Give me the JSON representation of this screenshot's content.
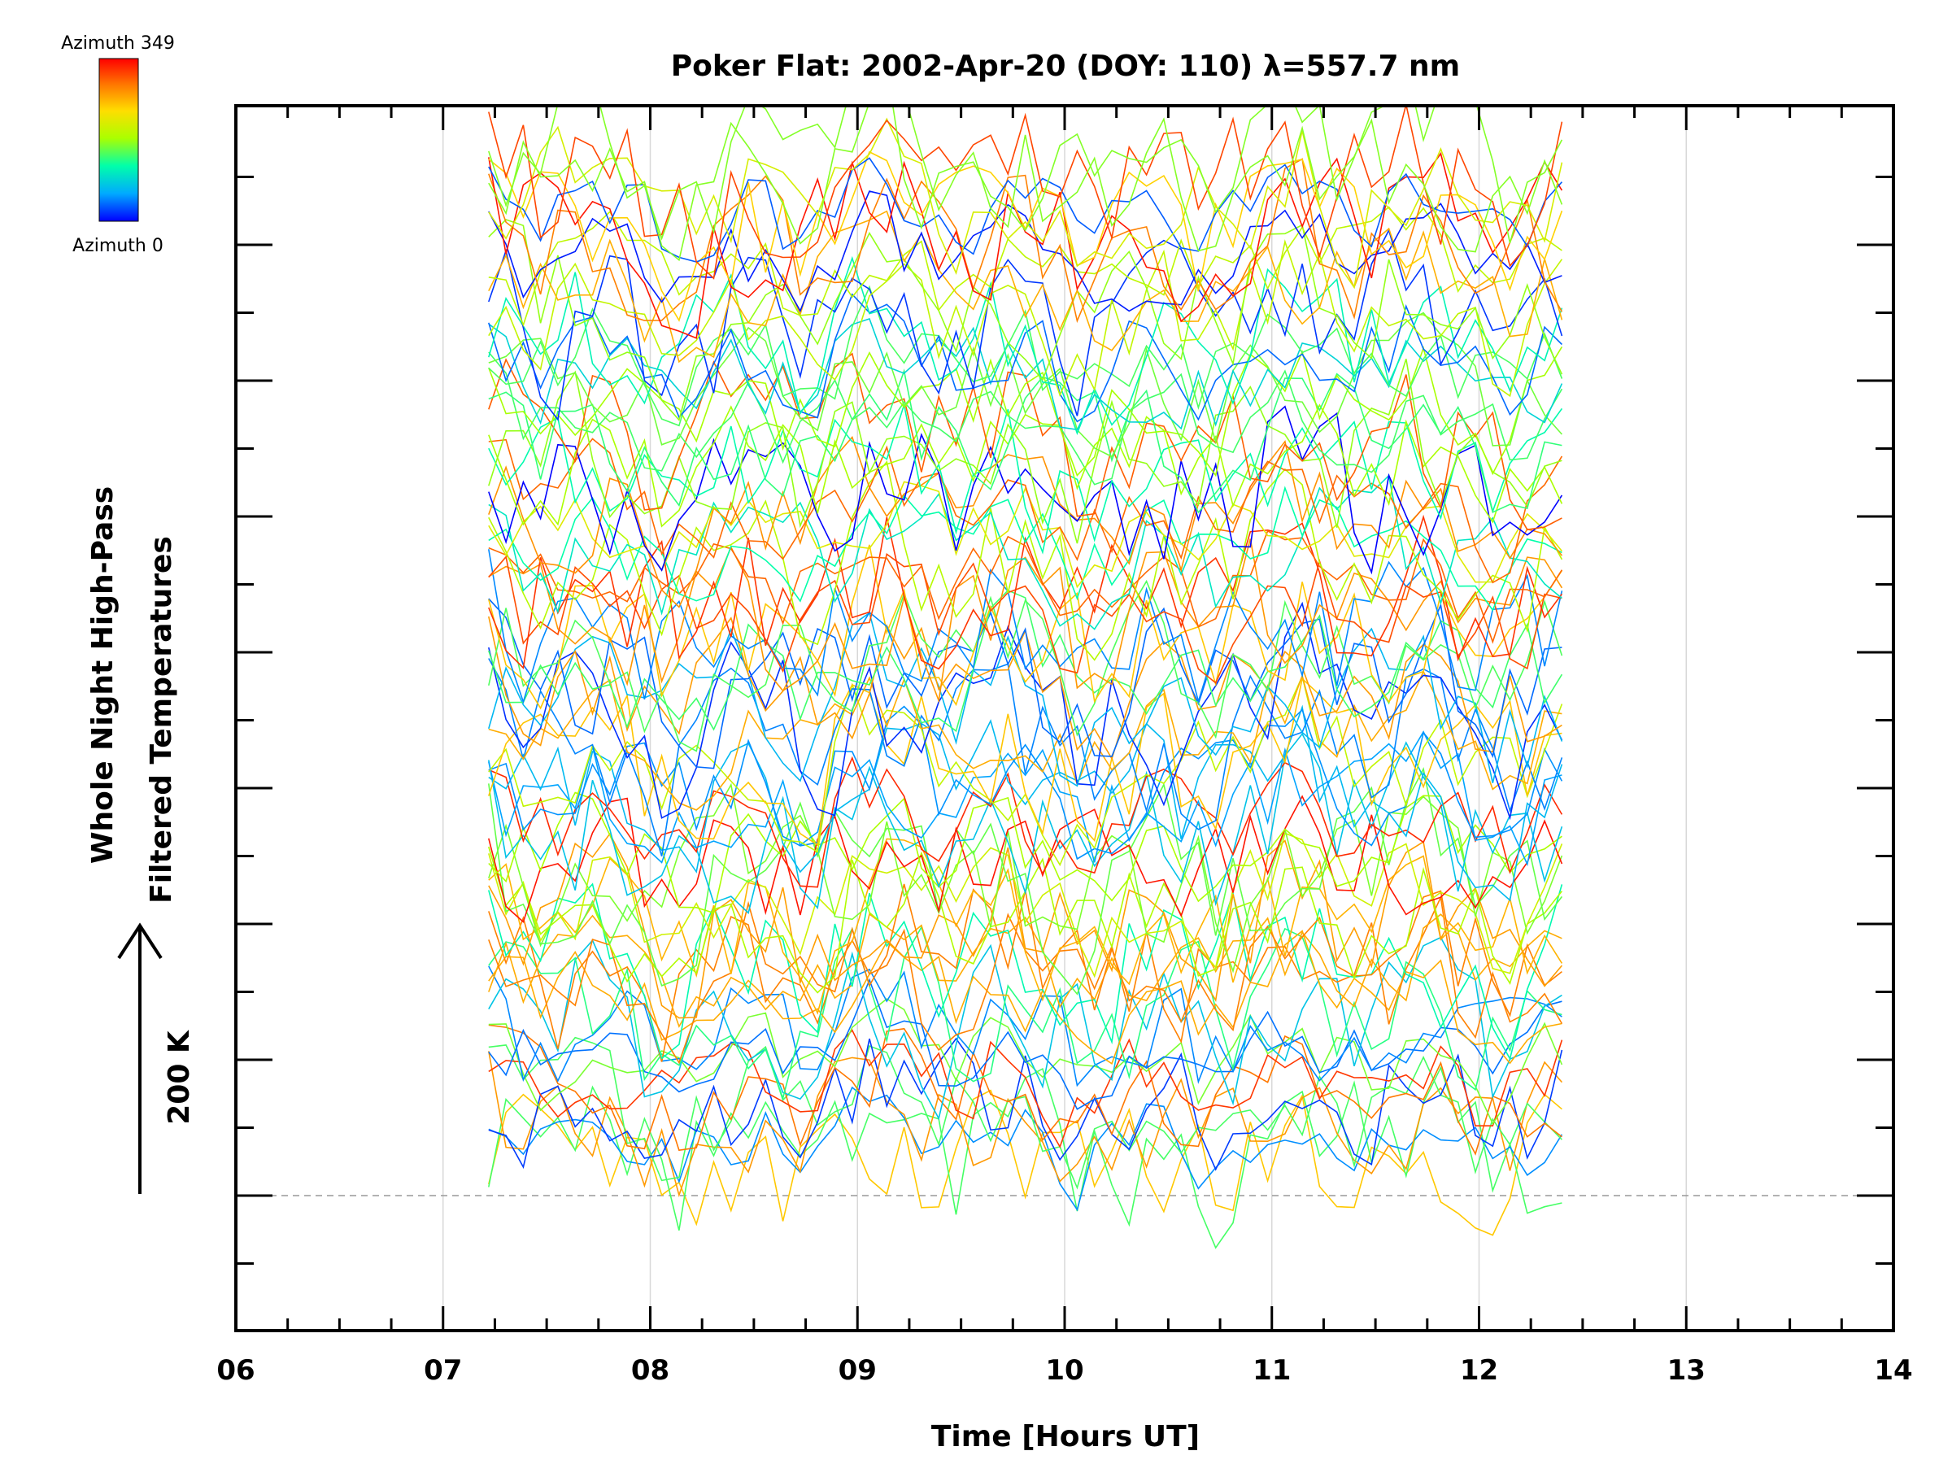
{
  "chart_data": {
    "type": "line",
    "title": "Poker Flat: 2002-Apr-20 (DOY: 110) λ=557.7 nm",
    "xlabel": "Time [Hours UT]",
    "ylabel_lines": [
      "Whole Night High-Pass",
      "Filtered Temperatures"
    ],
    "scale_bar_label": "200 K",
    "x_ticks": [
      "06",
      "07",
      "08",
      "09",
      "10",
      "11",
      "12",
      "13",
      "14"
    ],
    "xlim": [
      6,
      14
    ],
    "data_time_range": [
      7.22,
      12.4
    ],
    "series_count": 80,
    "colorbar": {
      "max_label": "Azimuth 349",
      "min_label": "Azimuth 0",
      "colors": [
        "#0000ff",
        "#00aaff",
        "#00ffaa",
        "#aaff00",
        "#ffdd00",
        "#ff7700",
        "#ff0000"
      ]
    },
    "grid": "vertical dotted at each hour",
    "reference_line": "dashed gray at baseline"
  }
}
